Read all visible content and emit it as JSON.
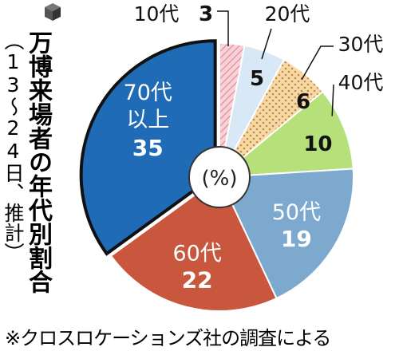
{
  "chart_data": {
    "type": "pie",
    "title": "万博来場者の年代別割合",
    "subtitle": "（13～24日、推計）",
    "center_label": "(%)",
    "footnote": "※クロスロケーションズ社の調査による",
    "slices": [
      {
        "label": "10代",
        "value": 3,
        "color": "#f4c4cc",
        "pattern": "hatch"
      },
      {
        "label": "20代",
        "value": 5,
        "color": "#d9e8f6"
      },
      {
        "label": "30代",
        "value": 6,
        "color": "#f6d9a8",
        "pattern": "dots"
      },
      {
        "label": "40代",
        "value": 10,
        "color": "#b5e07a"
      },
      {
        "label": "50代",
        "value": 19,
        "color": "#7da9cf"
      },
      {
        "label": "60代",
        "value": 22,
        "color": "#c8573e"
      },
      {
        "label": "70代以上",
        "value": 35,
        "color": "#1f6bb5",
        "highlight": true
      }
    ]
  }
}
